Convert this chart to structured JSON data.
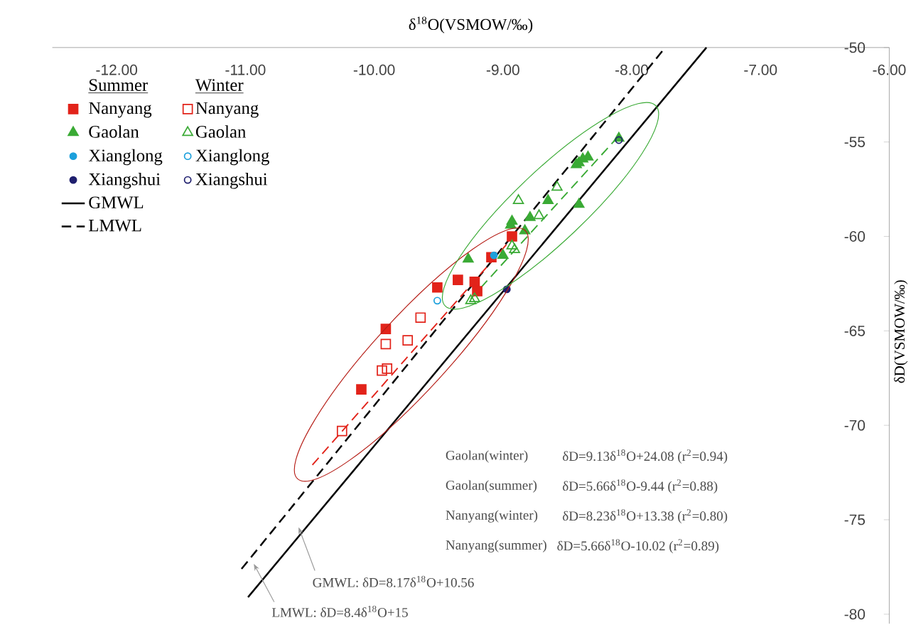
{
  "chart_data": {
    "type": "scatter",
    "xlabel": "δ$^{18}$O(VSMOW/‰)",
    "ylabel": "δD(VSMOW/‰)",
    "xlim": [
      -12.5,
      -6.0
    ],
    "ylim": [
      -80.5,
      -50
    ],
    "xticks": [
      {
        "value": -12,
        "label": "-12.00"
      },
      {
        "value": -11,
        "label": "-11.00"
      },
      {
        "value": -10,
        "label": "-10.00"
      },
      {
        "value": -9,
        "label": "-9.00"
      },
      {
        "value": -8,
        "label": "-8.00"
      },
      {
        "value": -7,
        "label": "-7.00"
      },
      {
        "value": -6,
        "label": "-6.00"
      }
    ],
    "yticks": [
      -50,
      -55,
      -60,
      -65,
      -70,
      -75,
      -80
    ],
    "legend": "top left",
    "series": [
      {
        "name": "Nanyang",
        "color": "#e2231a",
        "marker": "square",
        "x": [
          -8.93,
          -9.09,
          -9.22,
          -9.2,
          -9.35,
          -9.51,
          -9.91,
          -10.1
        ],
        "values": [
          -60.0,
          -61.1,
          -62.4,
          -62.9,
          -62.3,
          -62.7,
          -64.9,
          -68.1
        ]
      },
      {
        "name": "Nanyang",
        "color": "#e2231a",
        "marker": "square-open",
        "x": [
          -9.64,
          -9.74,
          -9.91,
          -9.9,
          -9.94,
          -10.25
        ],
        "values": [
          -64.3,
          -65.5,
          -65.7,
          -67.0,
          -67.1,
          -70.3
        ]
      },
      {
        "name": "Gaolan",
        "color": "#3aaa35",
        "marker": "triangle",
        "x": [
          -8.1,
          -8.34,
          -8.38,
          -8.41,
          -8.43,
          -8.41,
          -8.65,
          -8.79,
          -8.94,
          -8.93,
          -8.83,
          -9.0,
          -9.27
        ],
        "values": [
          -54.8,
          -55.8,
          -55.9,
          -56.1,
          -56.2,
          -58.3,
          -58.1,
          -59.0,
          -59.4,
          -59.2,
          -59.7,
          -61.0,
          -61.2
        ]
      },
      {
        "name": "Gaolan",
        "color": "#3aaa35",
        "marker": "triangle-open",
        "x": [
          -8.58,
          -8.88,
          -8.72,
          -8.93,
          -8.91,
          -9.25,
          -9.22
        ],
        "values": [
          -57.4,
          -58.1,
          -58.9,
          -60.5,
          -60.7,
          -63.4,
          -63.3
        ]
      },
      {
        "name": "Xianglong",
        "color": "#1ca0dc",
        "marker": "circle",
        "x": [
          -9.07
        ],
        "values": [
          -61.0
        ]
      },
      {
        "name": "Xianglong",
        "color": "#1ca0dc",
        "marker": "circle-open",
        "x": [
          -9.51
        ],
        "values": [
          -63.4
        ]
      },
      {
        "name": "Xiangshui",
        "color": "#1f1f6e",
        "marker": "circle",
        "x": [
          -8.97
        ],
        "values": [
          -62.8
        ]
      },
      {
        "name": "Xiangshui",
        "color": "#1f1f6e",
        "marker": "circle-open",
        "x": [
          -8.1
        ],
        "values": [
          -54.9
        ]
      },
      {
        "name": "GMWL",
        "type": "line",
        "color": "#000000",
        "line_style": "solid",
        "x": [
          -10.98,
          -7.42
        ],
        "values": [
          -79.1,
          -50.0
        ]
      },
      {
        "name": "LMWL",
        "type": "line",
        "color": "#000000",
        "line_style": "dashed",
        "x": [
          -11.03,
          -7.74
        ],
        "values": [
          -77.6,
          -50.0
        ]
      },
      {
        "type": "line",
        "color": "#e2231a",
        "line_style": "dashed",
        "x": [
          -10.48,
          -8.93
        ],
        "values": [
          -72.1,
          -60.1
        ]
      },
      {
        "type": "line",
        "color": "#3aaa35",
        "line_style": "dashed",
        "x": [
          -9.25,
          -8.13
        ],
        "values": [
          -63.3,
          -54.9
        ]
      }
    ],
    "annotations": [
      "Summer",
      "Winter",
      "Gaolan(winter)",
      "δD=9.13δ$^{18}$O+24.08 (r$^{2}$=0.94)",
      "Gaolan(summer)",
      "δD=5.66δ$^{18}$O-9.44 (r$^{2}$=0.88)",
      "Nanyang(winter)",
      "δD=8.23δ$^{18}$O+13.38 (r$^{2}$=0.80)",
      "Nanyang(summer)",
      "δD=5.66δ$^{18}$O-10.02  (r$^{2}$=0.89)",
      "GMWL:  δD=8.17δ$^{18}$O+10.56",
      "LMWL:  δD=8.4δ$^{18}$O+15"
    ]
  }
}
